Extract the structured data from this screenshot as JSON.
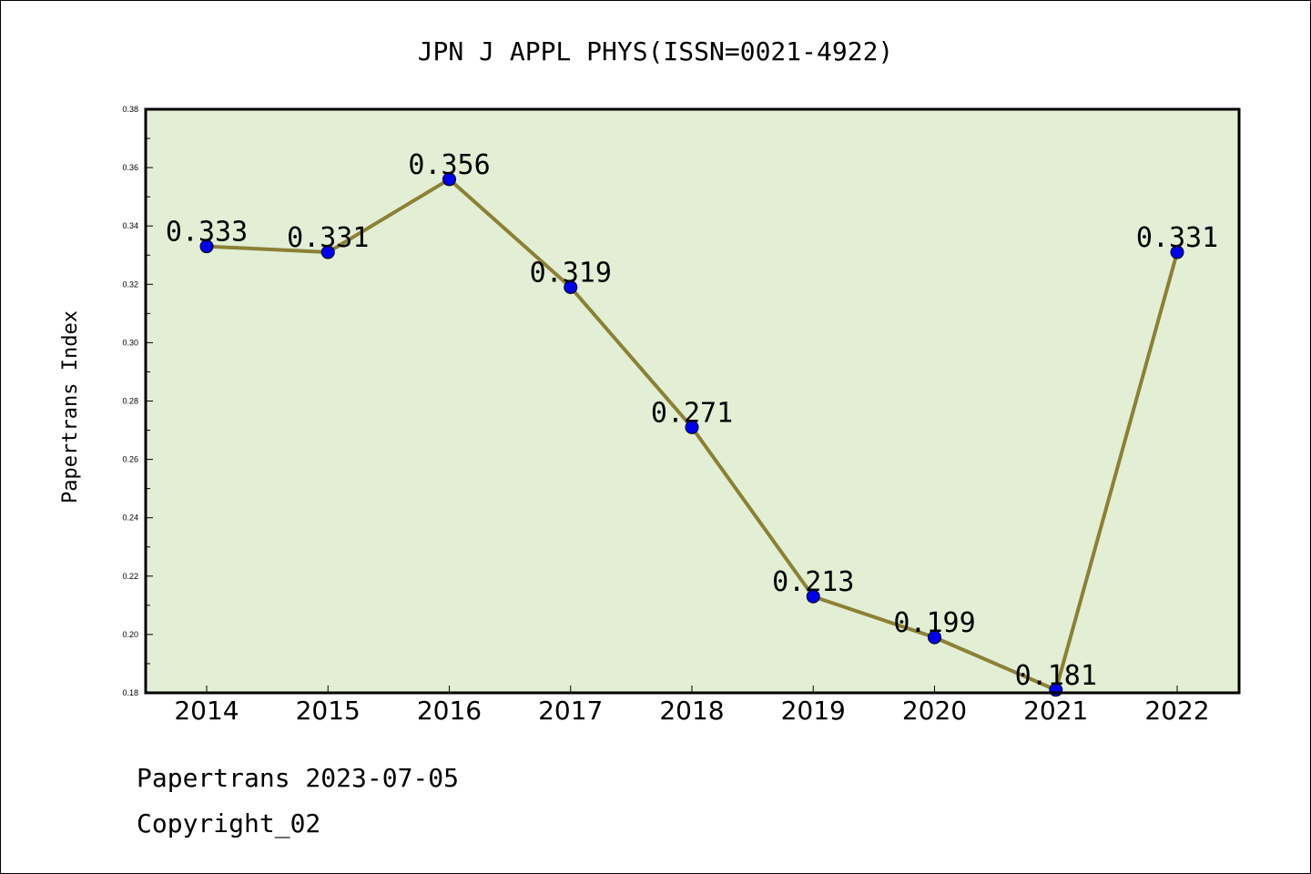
{
  "chart_data": {
    "type": "line",
    "title": "JPN J APPL PHYS(ISSN=0021-4922)",
    "ylabel": "Papertrans Index",
    "xlabel": "",
    "categories": [
      "2014",
      "2015",
      "2016",
      "2017",
      "2018",
      "2019",
      "2020",
      "2021",
      "2022"
    ],
    "values": [
      0.333,
      0.331,
      0.356,
      0.319,
      0.271,
      0.213,
      0.199,
      0.181,
      0.331
    ],
    "data_labels": [
      "0.333",
      "0.331",
      "0.356",
      "0.319",
      "0.271",
      "0.213",
      "0.199",
      "0.181",
      "0.331"
    ],
    "ylim": [
      0.18,
      0.38
    ],
    "yticks": [
      "0.18",
      "0.20",
      "0.22",
      "0.24",
      "0.26",
      "0.28",
      "0.30",
      "0.32",
      "0.34",
      "0.36",
      "0.38"
    ],
    "grid": false,
    "legend": "none",
    "colors": {
      "plot_bg": "#e2efd5",
      "line": "#8c8035",
      "marker": "#0000ee"
    }
  },
  "footer": {
    "line1": "Papertrans 2023-07-05",
    "line2": "Copyright_02"
  }
}
